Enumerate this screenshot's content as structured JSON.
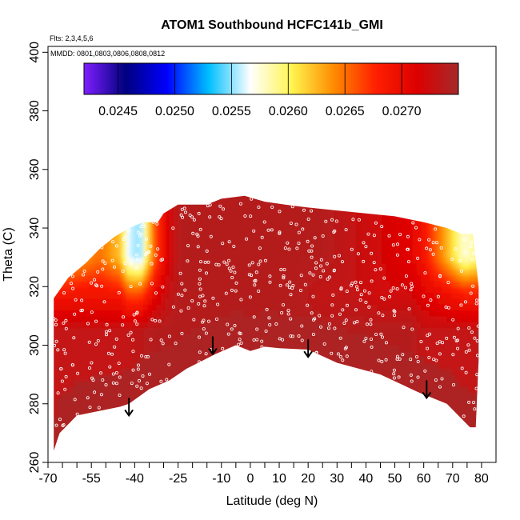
{
  "chart_data": {
    "type": "heatmap",
    "title": "ATOM1 Southbound HCFC141b_GMI",
    "flights_note": "Flts: 2,3,4,5,6",
    "dates_note": "MMDD: 0801,0803,0806,0808,0812",
    "xlabel": "Latitude (deg N)",
    "ylabel": "Theta (C)",
    "xlim": [
      -70,
      85
    ],
    "ylim": [
      260,
      402
    ],
    "x_ticks": [
      -70,
      -55,
      -40,
      -25,
      -10,
      0,
      10,
      20,
      30,
      40,
      50,
      60,
      70,
      80
    ],
    "x_minor_ticks": [
      -65,
      -60,
      -50,
      -45,
      -35,
      -30,
      -20,
      -15,
      -5,
      5,
      15,
      25,
      35,
      45,
      55,
      65,
      75
    ],
    "y_ticks": [
      260,
      280,
      300,
      320,
      340,
      360,
      380,
      400
    ],
    "colorbar": {
      "range": [
        0.0242,
        0.0275
      ],
      "tick_values": [
        0.0245,
        0.025,
        0.0255,
        0.026,
        0.0265,
        0.027
      ],
      "tick_labels": [
        "0.0245",
        "0.0250",
        "0.0255",
        "0.0260",
        "0.0265",
        "0.0270"
      ],
      "colors": [
        "#7f1fff",
        "#00007f",
        "#0000ff",
        "#00bfff",
        "#ffffff",
        "#fff44f",
        "#ff8c00",
        "#ff2000",
        "#dd0000",
        "#a52a2a"
      ]
    },
    "domain_floor": [
      [
        -68,
        264
      ],
      [
        -66,
        270
      ],
      [
        -60,
        276
      ],
      [
        -45,
        279
      ],
      [
        -42,
        280
      ],
      [
        -35,
        285
      ],
      [
        -28,
        288
      ],
      [
        -22,
        292
      ],
      [
        -12,
        297
      ],
      [
        -5,
        300
      ],
      [
        0,
        298
      ],
      [
        5,
        299.5
      ],
      [
        10,
        299
      ],
      [
        20,
        298.5
      ],
      [
        30,
        294
      ],
      [
        45,
        290
      ],
      [
        58,
        284
      ],
      [
        68,
        280
      ],
      [
        76,
        272
      ],
      [
        78,
        272
      ],
      [
        79,
        295
      ]
    ],
    "domain_ceiling": [
      [
        -68,
        316
      ],
      [
        -63,
        323
      ],
      [
        -57,
        328
      ],
      [
        -52,
        333
      ],
      [
        -47,
        337
      ],
      [
        -42,
        340
      ],
      [
        -37,
        342
      ],
      [
        -32,
        342
      ],
      [
        -30,
        345
      ],
      [
        -25,
        348
      ],
      [
        -15,
        348
      ],
      [
        -10,
        350
      ],
      [
        -2,
        351
      ],
      [
        5,
        349
      ],
      [
        12,
        348
      ],
      [
        20,
        347
      ],
      [
        30,
        346
      ],
      [
        40,
        345
      ],
      [
        50,
        344
      ],
      [
        60,
        342
      ],
      [
        68,
        340
      ],
      [
        73,
        338
      ],
      [
        77,
        338
      ],
      [
        79,
        320
      ]
    ],
    "field_layers": [
      {
        "name": "upper",
        "theta": 330,
        "lats": [
          -68,
          -60,
          -52,
          -45,
          -42,
          -38,
          -33,
          -28,
          -24,
          -15,
          -5,
          5,
          15,
          25,
          35,
          45,
          55,
          60,
          65,
          70,
          74,
          78
        ],
        "values": [
          0.02625,
          0.0263,
          0.0265,
          0.0262,
          0.0256,
          0.0255,
          0.0266,
          0.0272,
          0.0274,
          0.0274,
          0.0274,
          0.0274,
          0.0274,
          0.0274,
          0.0273,
          0.0272,
          0.0271,
          0.0269,
          0.0265,
          0.0261,
          0.02575,
          0.0259
        ]
      },
      {
        "name": "middle",
        "theta": 318,
        "lats": [
          -68,
          -60,
          -52,
          -45,
          -42,
          -38,
          -33,
          -28,
          -24,
          -15,
          -5,
          5,
          15,
          25,
          35,
          45,
          55,
          60,
          65,
          70,
          74,
          78
        ],
        "values": [
          0.02685,
          0.0269,
          0.0269,
          0.02685,
          0.0266,
          0.0266,
          0.02705,
          0.0273,
          0.0274,
          0.0274,
          0.0274,
          0.0274,
          0.0274,
          0.0273,
          0.0273,
          0.0272,
          0.0272,
          0.0271,
          0.027,
          0.0269,
          0.0268,
          0.0268
        ]
      },
      {
        "name": "lower",
        "theta": 305,
        "lats": [
          -68,
          -60,
          -52,
          -45,
          -42,
          -38,
          -33,
          -28,
          -24,
          -15,
          -5,
          5,
          15,
          25,
          35,
          45,
          55,
          60,
          65,
          70,
          74,
          78
        ],
        "values": [
          0.0273,
          0.0273,
          0.0273,
          0.0273,
          0.0273,
          0.02735,
          0.0274,
          0.0274,
          0.0274,
          0.0274,
          0.0274,
          0.0274,
          0.0274,
          0.0274,
          0.0274,
          0.0274,
          0.0274,
          0.0273,
          0.0273,
          0.0273,
          0.0273,
          0.0273
        ]
      }
    ],
    "floor_shading": {
      "value": 0.02745,
      "depth_theta": 12
    },
    "arrows": [
      {
        "lat": -42,
        "theta": 276
      },
      {
        "lat": -13,
        "theta": 297
      },
      {
        "lat": 20,
        "theta": 296
      },
      {
        "lat": 61,
        "theta": 282
      }
    ],
    "sample_points": {
      "count": 560,
      "seed": 20140801,
      "shape": "open-circle"
    }
  }
}
